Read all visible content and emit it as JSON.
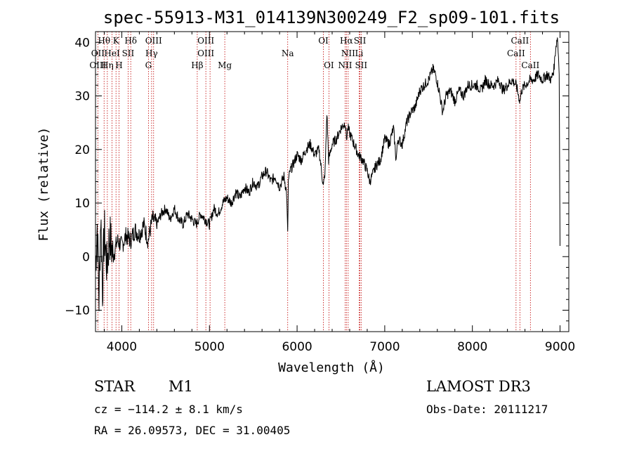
{
  "chart_data": {
    "type": "line",
    "title": "spec-55913-M31_014139N300249_F2_sp09-101.fits",
    "xlabel": "Wavelength (Å)",
    "ylabel": "Flux (relative)",
    "xlim": [
      3700,
      9100
    ],
    "ylim": [
      -14,
      42
    ],
    "x_ticks": [
      4000,
      5000,
      6000,
      7000,
      8000,
      9000
    ],
    "y_ticks": [
      -10,
      0,
      10,
      20,
      30,
      40
    ],
    "series": [
      {
        "name": "flux",
        "x": [
          3700,
          3720,
          3740,
          3760,
          3780,
          3800,
          3830,
          3860,
          3900,
          3950,
          4000,
          4050,
          4100,
          4150,
          4200,
          4250,
          4300,
          4350,
          4400,
          4450,
          4500,
          4550,
          4600,
          4650,
          4700,
          4750,
          4800,
          4850,
          4900,
          4950,
          5000,
          5050,
          5100,
          5150,
          5200,
          5250,
          5300,
          5350,
          5400,
          5450,
          5500,
          5550,
          5600,
          5650,
          5700,
          5750,
          5800,
          5850,
          5880,
          5893,
          5900,
          5920,
          5950,
          6000,
          6050,
          6100,
          6150,
          6200,
          6250,
          6300,
          6320,
          6340,
          6360,
          6400,
          6450,
          6500,
          6550,
          6563,
          6580,
          6600,
          6650,
          6700,
          6750,
          6800,
          6830,
          6900,
          6950,
          7000,
          7050,
          7100,
          7130,
          7150,
          7200,
          7250,
          7300,
          7350,
          7400,
          7450,
          7500,
          7550,
          7580,
          7620,
          7660,
          7700,
          7750,
          7800,
          7850,
          7900,
          7950,
          8000,
          8050,
          8100,
          8150,
          8200,
          8250,
          8300,
          8350,
          8400,
          8450,
          8500,
          8542,
          8560,
          8600,
          8662,
          8700,
          8750,
          8800,
          8850,
          8900,
          8930,
          8950,
          8970,
          8990,
          9000
        ],
        "values": [
          -2,
          6,
          -8,
          8,
          -6,
          5,
          -2,
          4,
          0,
          3,
          2,
          4,
          3,
          5,
          4,
          6,
          3,
          7,
          6,
          8,
          9,
          7,
          9,
          7,
          6,
          8,
          7,
          6,
          8,
          7,
          6,
          9,
          8,
          10,
          11,
          10,
          12,
          11,
          13,
          12,
          14,
          13,
          15,
          16,
          14,
          15,
          13,
          15,
          12,
          4,
          14,
          16,
          17,
          19,
          18,
          20,
          21,
          19,
          20,
          13,
          16,
          27,
          18,
          21,
          22,
          24,
          25,
          22,
          24,
          23,
          21,
          19,
          18,
          16,
          14,
          17,
          18,
          22,
          21,
          24,
          18,
          22,
          21,
          25,
          27,
          28,
          31,
          32,
          33,
          35,
          34,
          31,
          27,
          30,
          31,
          29,
          31,
          30,
          32,
          32,
          32,
          31,
          33,
          32,
          32,
          33,
          31,
          32,
          33,
          32,
          29,
          31,
          32,
          33,
          33,
          34,
          33,
          34,
          33,
          35,
          39,
          41,
          35,
          2
        ]
      }
    ],
    "line_labels": [
      {
        "text": "Hθ",
        "w": 3798,
        "row": 0
      },
      {
        "text": "K",
        "w": 3934,
        "row": 0
      },
      {
        "text": "Hδ",
        "w": 4102,
        "row": 0
      },
      {
        "text": "OIII",
        "w": 4363,
        "row": 0
      },
      {
        "text": "OIII",
        "w": 4959,
        "row": 0
      },
      {
        "text": "OI",
        "w": 6300,
        "row": 0
      },
      {
        "text": "Hα",
        "w": 6563,
        "row": 0
      },
      {
        "text": "SII",
        "w": 6717,
        "row": 0
      },
      {
        "text": "CaII",
        "w": 8542,
        "row": 0
      },
      {
        "text": "OII",
        "w": 3727,
        "row": 1
      },
      {
        "text": "HeI",
        "w": 3889,
        "row": 1
      },
      {
        "text": "SII",
        "w": 4072,
        "row": 1
      },
      {
        "text": "Hγ",
        "w": 4340,
        "row": 1
      },
      {
        "text": "OIII",
        "w": 4959,
        "row": 1
      },
      {
        "text": "Na",
        "w": 5893,
        "row": 1
      },
      {
        "text": "NII",
        "w": 6583,
        "row": 1
      },
      {
        "text": "Li",
        "w": 6708,
        "row": 1
      },
      {
        "text": "CaII",
        "w": 8498,
        "row": 1
      },
      {
        "text": "OIII",
        "w": 3727,
        "row": 2
      },
      {
        "text": "Hη",
        "w": 3835,
        "row": 2
      },
      {
        "text": "H",
        "w": 3968,
        "row": 2
      },
      {
        "text": "G",
        "w": 4304,
        "row": 2
      },
      {
        "text": "Hβ",
        "w": 4861,
        "row": 2
      },
      {
        "text": "Mg",
        "w": 5175,
        "row": 2
      },
      {
        "text": "OI",
        "w": 6363,
        "row": 2
      },
      {
        "text": "NII",
        "w": 6548,
        "row": 2
      },
      {
        "text": "SII",
        "w": 6731,
        "row": 2
      },
      {
        "text": "CaII",
        "w": 8662,
        "row": 2
      }
    ],
    "line_markers": [
      3727,
      3798,
      3835,
      3889,
      3934,
      3968,
      4072,
      4102,
      4304,
      4340,
      4363,
      4861,
      4959,
      5007,
      5175,
      5893,
      6300,
      6363,
      6548,
      6563,
      6583,
      6708,
      6717,
      6731,
      8498,
      8542,
      8662
    ],
    "colors": {
      "spectrum": "#000000",
      "markers": "#c00000"
    }
  },
  "info": {
    "object_class": "STAR",
    "subclass": "M1",
    "survey": "LAMOST DR3",
    "redshift_line": "cz = −114.2 ± 8.1 km/s",
    "obs_date": "Obs-Date: 20111217",
    "coords": "RA =  26.09573, DEC =  31.00405"
  }
}
